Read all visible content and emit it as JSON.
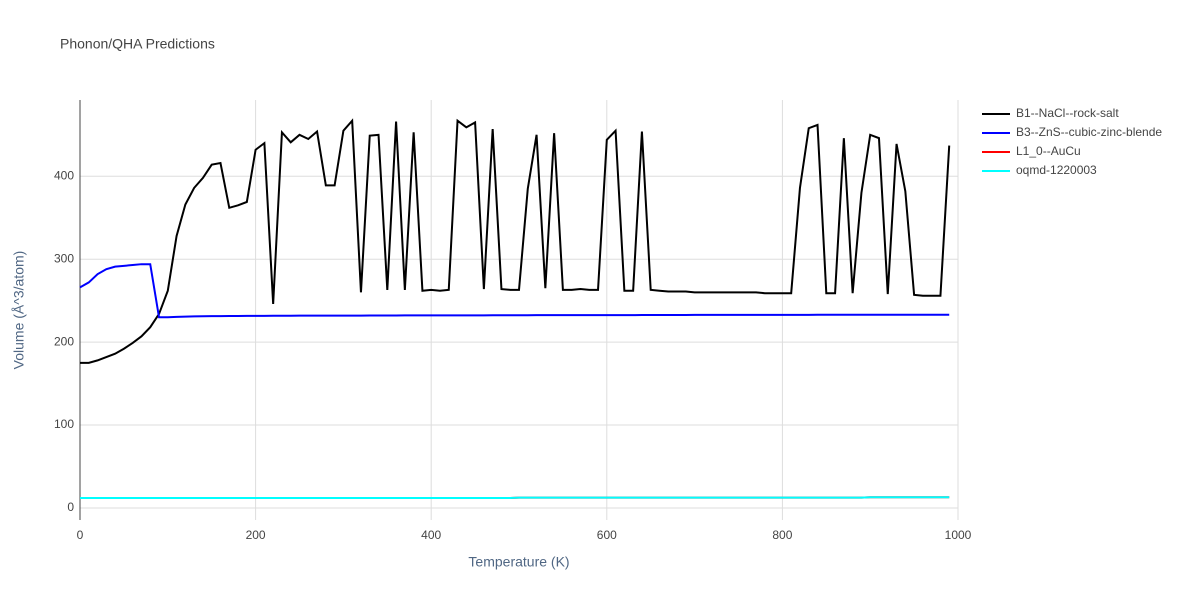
{
  "chart_data": {
    "type": "line",
    "title": "Phonon/QHA Predictions",
    "x_label": "Temperature (K)",
    "y_label": "Volume (Å^3/atom)",
    "xlim": [
      0,
      1000
    ],
    "ylim": [
      -14.5,
      492
    ],
    "xticks": [
      0,
      200,
      400,
      600,
      800,
      1000
    ],
    "yticks": [
      0,
      100,
      200,
      300,
      400
    ],
    "grid": true,
    "legend": "right",
    "x": [
      0,
      10,
      20,
      30,
      40,
      50,
      60,
      70,
      80,
      90,
      100,
      110,
      120,
      130,
      140,
      150,
      160,
      170,
      180,
      190,
      200,
      210,
      220,
      230,
      240,
      250,
      260,
      270,
      280,
      290,
      300,
      310,
      320,
      330,
      340,
      350,
      360,
      370,
      380,
      390,
      400,
      410,
      420,
      430,
      440,
      450,
      460,
      470,
      480,
      490,
      500,
      510,
      520,
      530,
      540,
      550,
      560,
      570,
      580,
      590,
      600,
      610,
      620,
      630,
      640,
      650,
      660,
      670,
      680,
      690,
      700,
      710,
      720,
      730,
      740,
      750,
      760,
      770,
      780,
      790,
      800,
      810,
      820,
      830,
      840,
      850,
      860,
      870,
      880,
      890,
      900,
      910,
      920,
      930,
      940,
      950,
      960,
      970,
      980,
      990
    ],
    "series": [
      {
        "name": "B1--NaCl--rock-salt",
        "color": "#000000",
        "values": [
          175,
          175,
          178,
          182,
          186,
          192,
          199,
          207,
          218,
          234,
          262,
          328,
          366,
          386,
          398,
          414,
          416,
          362,
          365,
          369,
          432,
          440,
          246,
          453,
          441,
          450,
          445,
          454,
          389,
          389,
          455,
          467,
          260,
          449,
          450,
          263,
          466,
          263,
          453,
          262,
          263,
          262,
          263,
          467,
          459,
          465,
          264,
          457,
          264,
          263,
          263,
          385,
          450,
          265,
          452,
          263,
          263,
          264,
          263,
          263,
          444,
          455,
          262,
          262,
          454,
          263,
          262,
          261,
          261,
          261,
          260,
          260,
          260,
          260,
          260,
          260,
          260,
          260,
          259,
          259,
          259,
          259,
          386,
          458,
          462,
          259,
          259,
          446,
          259,
          380,
          450,
          446,
          258,
          439,
          382,
          257,
          256,
          256,
          256,
          437
        ]
      },
      {
        "name": "B3--ZnS--cubic-zinc-blende",
        "color": "#0000ff",
        "values": [
          266,
          272,
          282,
          288,
          291,
          292,
          293,
          294,
          294,
          230,
          230,
          230.5,
          230.8,
          231,
          231.2,
          231.3,
          231.4,
          231.5,
          231.5,
          231.6,
          231.7,
          231.7,
          231.8,
          231.8,
          231.8,
          231.9,
          231.9,
          231.9,
          232,
          232,
          232,
          232,
          232,
          232.1,
          232.1,
          232.1,
          232.1,
          232.2,
          232.2,
          232.2,
          232.2,
          232.2,
          232.3,
          232.3,
          232.3,
          232.3,
          232.3,
          232.4,
          232.4,
          232.4,
          232.4,
          232.4,
          232.5,
          232.5,
          232.5,
          232.5,
          232.5,
          232.5,
          232.6,
          232.6,
          232.6,
          232.6,
          232.6,
          232.6,
          232.7,
          232.7,
          232.7,
          232.7,
          232.7,
          232.7,
          232.8,
          232.8,
          232.8,
          232.8,
          232.8,
          232.8,
          232.8,
          232.9,
          232.9,
          232.9,
          232.9,
          232.9,
          232.9,
          232.9,
          233,
          233,
          233,
          233,
          233,
          233,
          233,
          233,
          233.1,
          233.1,
          233.1,
          233.1,
          233.1,
          233.1,
          233.1,
          233.1
        ]
      },
      {
        "name": "L1_0--AuCu",
        "color": "#ff0000",
        "values": [
          12,
          12,
          12,
          12,
          12,
          12,
          12,
          12,
          12,
          12,
          12,
          12,
          12,
          12,
          12,
          12,
          12,
          12,
          12,
          12,
          12,
          12,
          12,
          12,
          12,
          12,
          12,
          12,
          12,
          12,
          12,
          12,
          12,
          12,
          12,
          12,
          12,
          12,
          12,
          12,
          12,
          12,
          12,
          12,
          12,
          12,
          12,
          12,
          12,
          12,
          12.5,
          12.5,
          12.5,
          12.5,
          12.5,
          12.5,
          12.5,
          12.5,
          12.5,
          12.5,
          12.5,
          12.5,
          12.5,
          12.5,
          12.5,
          12.5,
          12.5,
          12.5,
          12.5,
          12.5,
          12.5,
          12.5,
          12.5,
          12.5,
          12.5,
          12.5,
          12.5,
          12.5,
          12.5,
          12.5,
          12.5,
          12.5,
          12.5,
          12.5,
          12.5,
          12.5,
          12.5,
          12.5,
          12.5,
          12.5,
          13,
          13,
          13,
          13,
          13,
          13,
          13,
          13,
          13,
          13
        ]
      },
      {
        "name": "oqmd-1220003",
        "color": "#00ffff",
        "values": [
          12,
          12,
          12,
          12,
          12,
          12,
          12,
          12,
          12,
          12,
          12,
          12,
          12,
          12,
          12,
          12,
          12,
          12,
          12,
          12,
          12,
          12,
          12,
          12,
          12,
          12,
          12,
          12,
          12,
          12,
          12,
          12,
          12,
          12,
          12,
          12,
          12,
          12,
          12,
          12,
          12,
          12,
          12,
          12,
          12,
          12,
          12,
          12,
          12,
          12,
          12.5,
          12.5,
          12.5,
          12.5,
          12.5,
          12.5,
          12.5,
          12.5,
          12.5,
          12.5,
          12.5,
          12.5,
          12.5,
          12.5,
          12.5,
          12.5,
          12.5,
          12.5,
          12.5,
          12.5,
          12.5,
          12.5,
          12.5,
          12.5,
          12.5,
          12.5,
          12.5,
          12.5,
          12.5,
          12.5,
          12.5,
          12.5,
          12.5,
          12.5,
          12.5,
          12.5,
          12.5,
          12.5,
          12.5,
          12.5,
          13,
          13,
          13,
          13,
          13,
          13,
          13,
          13,
          13,
          13
        ]
      }
    ]
  }
}
